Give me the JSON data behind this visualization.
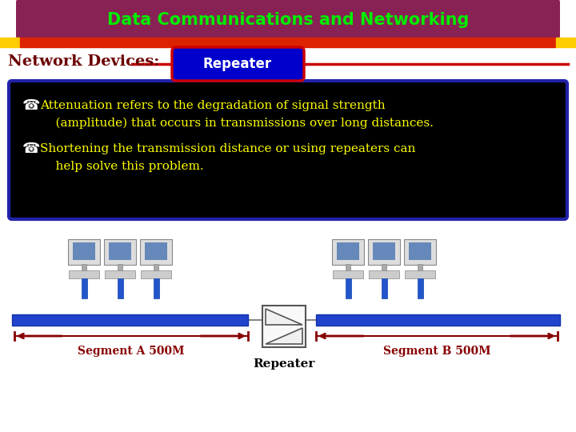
{
  "title": "Data Communications and Networking",
  "title_color": "#00ee00",
  "title_bg": "#882255",
  "subtitle": "Network Devices:",
  "subtitle_color": "#6B0000",
  "repeater_label": "Repeater",
  "repeater_bg": "#0000cc",
  "repeater_text_color": "#ffffff",
  "repeater_border": "#cc0000",
  "bar_color_outer": "#ffcc00",
  "bar_color_inner": "#dd2200",
  "text_box_bg": "#000000",
  "text_box_border": "#2222aa",
  "text_color_yellow": "#ffff00",
  "bullet_char": "&",
  "text_line1": "Attenuation refers to the degradation of signal strength",
  "text_line2": "    (amplitude) that occurs in transmissions over long distances.",
  "text_line3": "Shortening the transmission distance or using repeaters can",
  "text_line4": "    help solve this problem.",
  "segment_a_label": "Segment A 500M",
  "segment_b_label": "Segment B 500M",
  "repeater_box_label": "Repeater",
  "cable_color": "#1144cc",
  "cable_thick": "#2255dd",
  "arrow_color": "#880000",
  "bg_color": "#ffffff",
  "monitor_body": "#cccccc",
  "monitor_screen": "#7799cc",
  "monitor_base": "#999999"
}
